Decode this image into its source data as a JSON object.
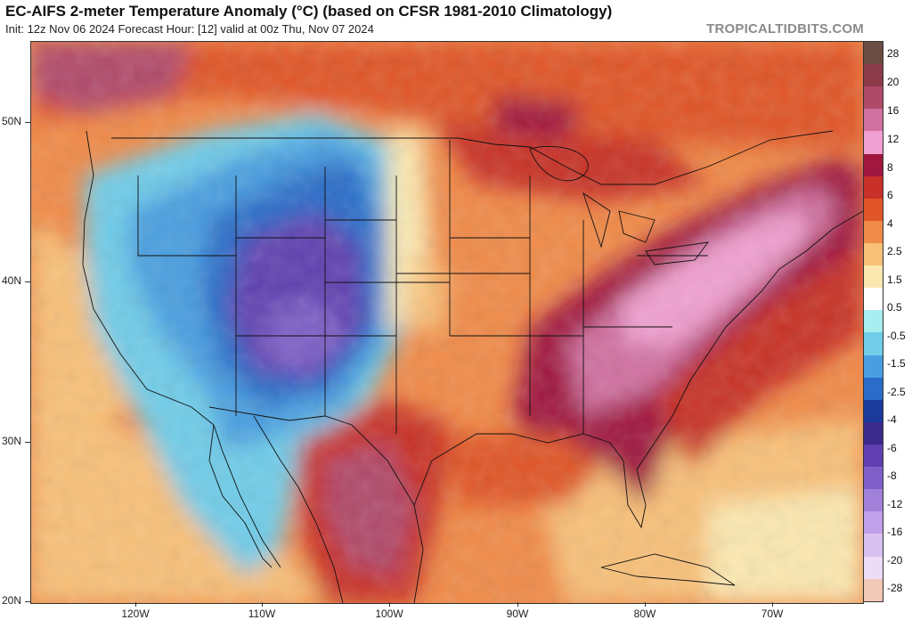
{
  "header": {
    "title": "EC-AIFS 2-meter Temperature Anomaly (°C) (based on CFSR 1981-2010 Climatology)",
    "subtitle": "Init: 12z Nov 06 2024   Forecast Hour: [12]   valid at 00z Thu, Nov 07 2024",
    "credit": "TROPICALTIDBITS.COM"
  },
  "axes": {
    "lat_labels": [
      "50N",
      "40N",
      "30N",
      "20N"
    ],
    "lon_labels": [
      "120W",
      "110W",
      "100W",
      "90W",
      "80W",
      "70W"
    ]
  },
  "colorbar": {
    "labels": [
      "28",
      "20",
      "16",
      "12",
      "8",
      "6",
      "4",
      "2.5",
      "1.5",
      "0.5",
      "-0.5",
      "-1.5",
      "-2.5",
      "-4",
      "-6",
      "-8",
      "-12",
      "-16",
      "-20",
      "-28"
    ],
    "colors": [
      "#6b4c42",
      "#8b3a4a",
      "#b04a6a",
      "#d070a0",
      "#f0a0d0",
      "#a01840",
      "#c83028",
      "#e05528",
      "#f08a48",
      "#f8c078",
      "#fbe8b0",
      "#ffffff",
      "#a8eef0",
      "#70cce8",
      "#4a9ee0",
      "#2a6cc8",
      "#1a3a9c",
      "#3a2a8a",
      "#6040b0",
      "#8060c8",
      "#a080d8",
      "#c0a0e8",
      "#d8c0f0",
      "#ecdcf4",
      "#f2c8b8"
    ]
  }
}
